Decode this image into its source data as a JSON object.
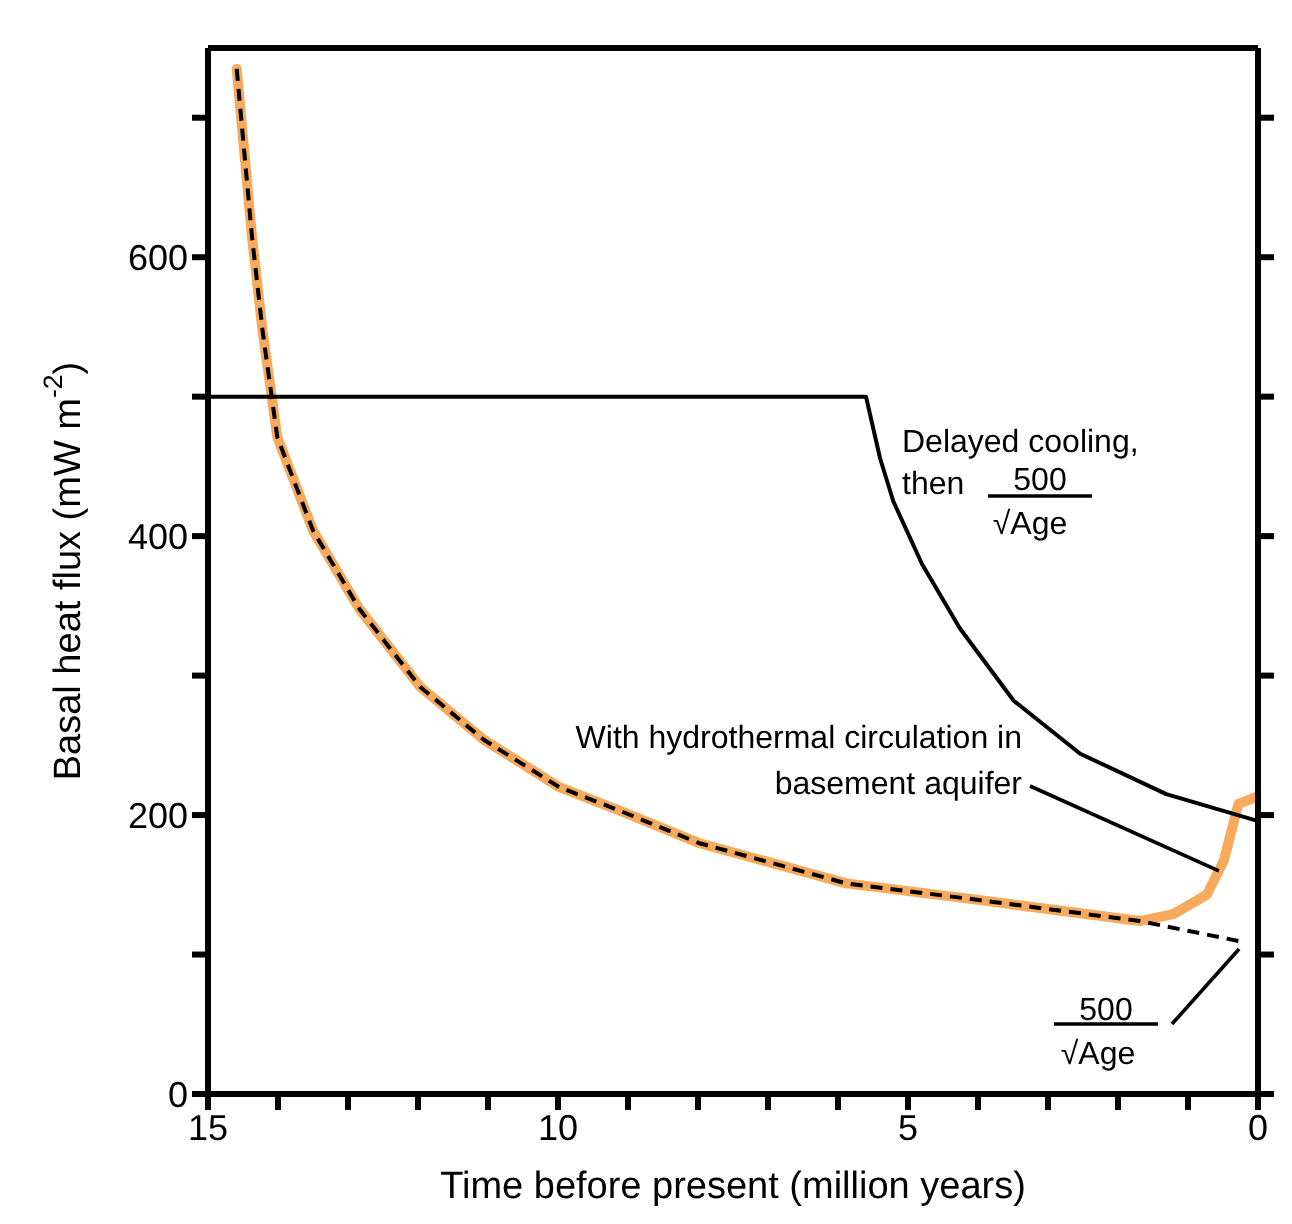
{
  "chart_data": {
    "type": "line",
    "xlabel": "Time before present (million years)",
    "ylabel": "Basal heat flux (mW m$^{-2}$)",
    "xlim": [
      15,
      0
    ],
    "ylim": [
      0,
      750
    ],
    "xticks": [
      15,
      {
        "value": 14,
        "label": null
      },
      {
        "value": 13,
        "label": null
      },
      {
        "value": 12,
        "label": null
      },
      {
        "value": 11,
        "label": null
      },
      10,
      {
        "value": 9,
        "label": null
      },
      {
        "value": 8,
        "label": null
      },
      {
        "value": 7,
        "label": null
      },
      {
        "value": 6,
        "label": null
      },
      5,
      {
        "value": 4,
        "label": null
      },
      {
        "value": 3,
        "label": null
      },
      {
        "value": 2,
        "label": null
      },
      {
        "value": 1,
        "label": null
      },
      0
    ],
    "yticks": [
      0,
      {
        "value": 100,
        "label": null
      },
      200,
      {
        "value": 300,
        "label": null
      },
      400,
      {
        "value": 500,
        "label": null
      },
      600,
      {
        "value": 700,
        "label": null
      }
    ],
    "marker": "none",
    "series": [
      {
        "color": "#f7a95c",
        "line_style": "solid",
        "x": [
          14.59,
          14.37,
          14.22,
          14.01,
          13.5,
          12.84,
          11.97,
          11.06,
          9.98,
          9.11,
          7.99,
          5.88,
          3.97,
          1.69,
          1.21,
          0.73,
          0.49,
          0.28,
          0.02
        ],
        "values": [
          735,
          614,
          547,
          471,
          404,
          348,
          292,
          254,
          220,
          203,
          180,
          151,
          139,
          124,
          129,
          143,
          167,
          208,
          213
        ]
      },
      {
        "color": "#000000",
        "line_style": "dashed",
        "x": [
          14.59,
          14.37,
          14.22,
          14.01,
          13.5,
          12.84,
          11.97,
          11.06,
          9.98,
          9.11,
          7.99,
          5.88,
          3.97,
          1.69,
          0.21
        ],
        "values": [
          735,
          614,
          547,
          471,
          404,
          348,
          292,
          254,
          220,
          203,
          180,
          151,
          139,
          124,
          109
        ]
      },
      {
        "color": "#000000",
        "line_style": "solid",
        "x": [
          15,
          5.6,
          5.4,
          5.21,
          4.8,
          4.26,
          3.49,
          2.54,
          1.31,
          0.02
        ],
        "values": [
          500,
          500,
          456,
          425,
          380,
          334,
          282,
          244,
          215,
          196
        ]
      }
    ],
    "annotations": [
      "Delayed cooling,\nthen",
      "500",
      "√Age",
      {
        "text": "With hydrothermal circulation in\nbasement aquifer",
        "x": 0.56,
        "y": 160
      },
      {
        "text": "500",
        "x": 0.27,
        "y": 104
      },
      "√Age"
    ]
  }
}
